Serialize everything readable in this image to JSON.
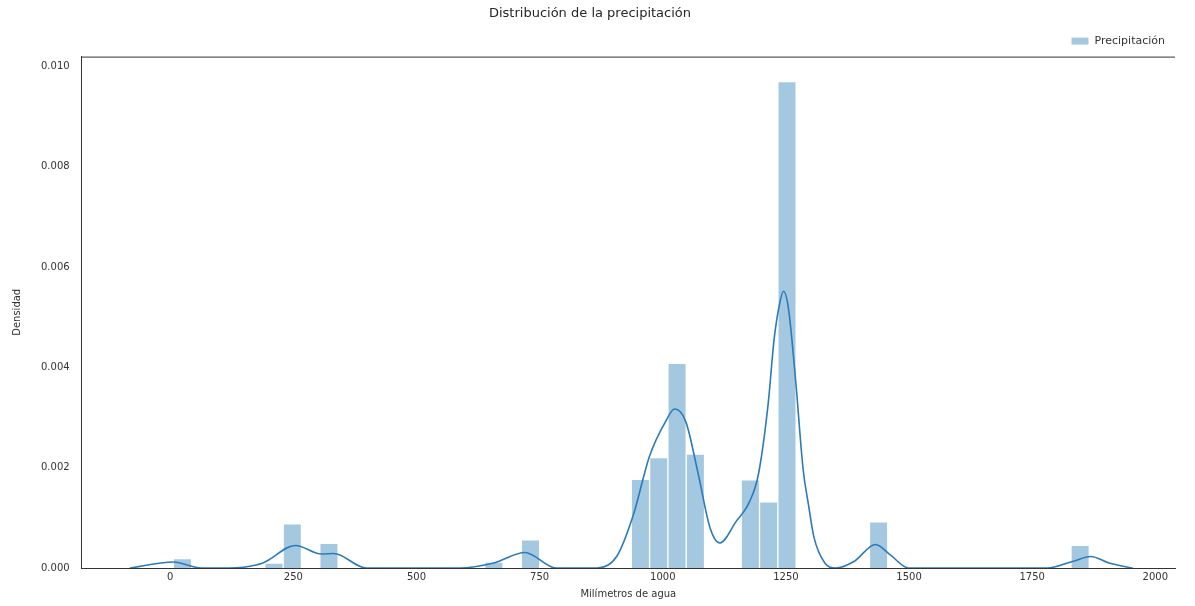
{
  "chart_data": {
    "type": "histogram",
    "title": "Distribución de la precipitación",
    "xlabel": "Milímetros de agua",
    "ylabel": "Densidad",
    "bins": [
      6,
      43.2,
      80.4,
      117.6,
      154.8,
      192,
      229.2,
      266.4,
      303.6,
      340.8,
      378,
      415.2,
      452.4,
      489.6,
      526.8,
      564,
      601.2,
      638.4,
      675.6,
      712.8,
      750,
      787.2,
      824.4,
      861.6,
      898.8,
      936,
      973.2,
      1010.4,
      1047.6,
      1084.8,
      1122,
      1159.2,
      1196.4,
      1233.6,
      1270.8,
      1308,
      1345.2,
      1382.4,
      1419.6,
      1456.8,
      1494,
      1531.2,
      1568.4,
      1605.6,
      1642.8,
      1680,
      1717.2,
      1754.4,
      1791.6,
      1828.8,
      1866
    ],
    "series": [
      {
        "name": "Precipitación",
        "color": "#a5c8e1",
        "values": [
          0.00019,
          0,
          0,
          0,
          0,
          0.0001,
          0.00088,
          0,
          0.00049,
          0,
          0,
          0,
          0,
          0,
          0,
          0,
          0,
          0.00012,
          0,
          0.00056,
          0,
          0,
          0,
          0,
          0,
          0.00177,
          0.0022,
          0.00408,
          0.00227,
          0,
          0,
          0.00176,
          0.00132,
          0.0097,
          0,
          0,
          0,
          0,
          0.00092,
          0,
          0,
          0,
          0,
          0,
          0,
          0,
          0,
          0,
          0,
          0.00045
        ]
      },
      {
        "type": "line",
        "color": "#2b7bba",
        "x": [
          -81,
          6,
          63,
          120,
          188,
          254,
          307,
          332,
          398,
          470,
          587,
          657,
          720,
          783,
          867,
          907,
          940,
          973,
          1005,
          1024,
          1047,
          1071,
          1096,
          1116,
          1149,
          1175,
          1194,
          1214,
          1226,
          1237,
          1245,
          1255,
          1270,
          1285,
          1296,
          1307,
          1329,
          1351,
          1388,
          1432,
          1462,
          1499,
          1587,
          1780,
          1832,
          1869,
          1906,
          1953
        ],
        "values": [
          0,
          0.00012,
          0,
          0,
          0.0001,
          0.00045,
          0.00028,
          0.00029,
          0,
          0,
          0,
          0.0001,
          0.00031,
          0,
          0,
          0.00024,
          0.00105,
          0.00223,
          0.00291,
          0.00317,
          0.00291,
          0.00192,
          0.0008,
          0.0005,
          0.00093,
          0.0013,
          0.00186,
          0.00328,
          0.00456,
          0.00526,
          0.00552,
          0.00519,
          0.00371,
          0.00196,
          0.00125,
          0.00061,
          0.0001,
          0,
          0.00013,
          0.00047,
          0.00026,
          0,
          0,
          0,
          0.00013,
          0.00023,
          0.0001,
          0
        ]
      }
    ],
    "xlim": [
      -180,
      2040
    ],
    "xticks": [
      0,
      250,
      500,
      750,
      1000,
      1250,
      1500,
      1750,
      2000
    ],
    "ylim": [
      0,
      0.0102
    ],
    "yticks": [
      {
        "value": 0,
        "label": "0.000"
      },
      {
        "value": 0.002,
        "label": "0.002"
      },
      {
        "value": 0.004,
        "label": "0.004"
      },
      {
        "value": 0.006,
        "label": "0.006"
      },
      {
        "value": 0.008,
        "label": "0.008"
      },
      {
        "value": 0.01,
        "label": "0.010"
      }
    ],
    "grid": false,
    "legend": "top right"
  }
}
